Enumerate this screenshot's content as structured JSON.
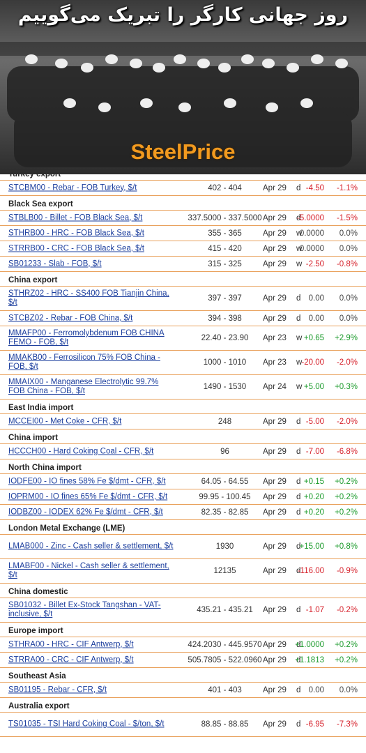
{
  "banner": {
    "title": "روز جهانی کارگر را تبریک می‌گوییم",
    "logo": "SteelPrice"
  },
  "sections": [
    {
      "title": "Turkey export",
      "rows": [
        {
          "name": "STCBM00 - Rebar - FOB Turkey, $/t",
          "range": "402 - 404",
          "date": "Apr 29",
          "period": "d",
          "change": "-4.50",
          "pct": "-1.1%"
        }
      ]
    },
    {
      "title": "Black Sea export",
      "rows": [
        {
          "name": "STBLB00 - Billet - FOB Black Sea, $/t",
          "range": "337.5000 - 337.5000",
          "date": "Apr 29",
          "period": "d",
          "change": "-5.0000",
          "pct": "-1.5%"
        },
        {
          "name": "STHRB00 - HRC - FOB Black Sea, $/t",
          "range": "355 - 365",
          "date": "Apr 29",
          "period": "w",
          "change": "0.0000",
          "pct": "0.0%"
        },
        {
          "name": "STRRB00 - CRC - FOB Black Sea, $/t",
          "range": "415 - 420",
          "date": "Apr 29",
          "period": "w",
          "change": "0.0000",
          "pct": "0.0%"
        },
        {
          "name": "SB01233 - Slab - FOB, $/t",
          "range": "315 - 325",
          "date": "Apr 29",
          "period": "w",
          "change": "-2.50",
          "pct": "-0.8%"
        }
      ]
    },
    {
      "title": "China export",
      "rows": [
        {
          "name": "STHRZ02 - HRC - SS400 FOB Tianjin China, $/t",
          "range": "397 - 397",
          "date": "Apr 29",
          "period": "d",
          "change": "0.00",
          "pct": "0.0%"
        },
        {
          "name": "STCBZ02 - Rebar - FOB China, $/t",
          "range": "394 - 398",
          "date": "Apr 29",
          "period": "d",
          "change": "0.00",
          "pct": "0.0%"
        },
        {
          "name": "MMAFP00 - Ferromolybdenum FOB CHINA FEMO - FOB, $/t",
          "range": "22.40 - 23.90",
          "date": "Apr 23",
          "period": "w",
          "change": "+0.65",
          "pct": "+2.9%"
        },
        {
          "name": "MMAKB00 - Ferrosilicon 75% FOB China - FOB, $/t",
          "range": "1000 - 1010",
          "date": "Apr 23",
          "period": "w",
          "change": "-20.00",
          "pct": "-2.0%"
        },
        {
          "name": "MMAIX00 - Manganese Electrolytic 99.7% FOB China - FOB, $/t",
          "range": "1490 - 1530",
          "date": "Apr 24",
          "period": "w",
          "change": "+5.00",
          "pct": "+0.3%"
        }
      ]
    },
    {
      "title": "East India import",
      "rows": [
        {
          "name": "MCCEI00 - Met Coke - CFR, $/t",
          "range": "248",
          "date": "Apr 29",
          "period": "d",
          "change": "-5.00",
          "pct": "-2.0%"
        }
      ]
    },
    {
      "title": "China import",
      "rows": [
        {
          "name": "HCCCH00 - Hard Coking Coal - CFR, $/t",
          "range": "96",
          "date": "Apr 29",
          "period": "d",
          "change": "-7.00",
          "pct": "-6.8%"
        }
      ]
    },
    {
      "title": "North China import",
      "rows": [
        {
          "name": "IODFE00 - IO fines 58% Fe $/dmt - CFR, $/t",
          "range": "64.05 - 64.55",
          "date": "Apr 29",
          "period": "d",
          "change": "+0.15",
          "pct": "+0.2%"
        },
        {
          "name": "IOPRM00 - IO fines 65% Fe $/dmt - CFR, $/t",
          "range": "99.95 - 100.45",
          "date": "Apr 29",
          "period": "d",
          "change": "+0.20",
          "pct": "+0.2%"
        },
        {
          "name": "IODBZ00 - IODEX 62% Fe $/dmt - CFR, $/t",
          "range": "82.35 - 82.85",
          "date": "Apr 29",
          "period": "d",
          "change": "+0.20",
          "pct": "+0.2%"
        }
      ]
    },
    {
      "title": "London Metal Exchange (LME)",
      "rows": [
        {
          "name": "LMAB000 - Zinc - Cash seller & settlement, $/t",
          "range": "1930",
          "date": "Apr 29",
          "period": "d",
          "change": "+15.00",
          "pct": "+0.8%"
        },
        {
          "name": "LMABF00 - Nickel - Cash seller & settlement, $/t",
          "range": "12135",
          "date": "Apr 29",
          "period": "d",
          "change": "-116.00",
          "pct": "-0.9%"
        }
      ]
    },
    {
      "title": "China domestic",
      "rows": [
        {
          "name": "SB01032 - Billet Ex-Stock Tangshan - VAT-inclusive, $/t",
          "range": "435.21 - 435.21",
          "date": "Apr 29",
          "period": "d",
          "change": "-1.07",
          "pct": "-0.2%"
        }
      ]
    },
    {
      "title": "Europe import",
      "rows": [
        {
          "name": "STHRA00 - HRC - CIF Antwerp, $/t",
          "range": "424.2030 - 445.9570",
          "date": "Apr 29",
          "period": "d",
          "change": "+1.0000",
          "pct": "+0.2%"
        },
        {
          "name": "STRRA00 - CRC - CIF Antwerp, $/t",
          "range": "505.7805 - 522.0960",
          "date": "Apr 29",
          "period": "d",
          "change": "+1.1813",
          "pct": "+0.2%"
        }
      ]
    },
    {
      "title": "Southeast Asia",
      "rows": [
        {
          "name": "SB01195 - Rebar - CFR, $/t",
          "range": "401 - 403",
          "date": "Apr 29",
          "period": "d",
          "change": "0.00",
          "pct": "0.0%"
        }
      ]
    },
    {
      "title": "Australia export",
      "rows": [
        {
          "name": "TS01035 - TSI Hard Coking Coal - $/ton, $/t",
          "range": "88.85 - 88.85",
          "date": "Apr 29",
          "period": "d",
          "change": "-6.95",
          "pct": "-7.3%"
        }
      ]
    }
  ]
}
